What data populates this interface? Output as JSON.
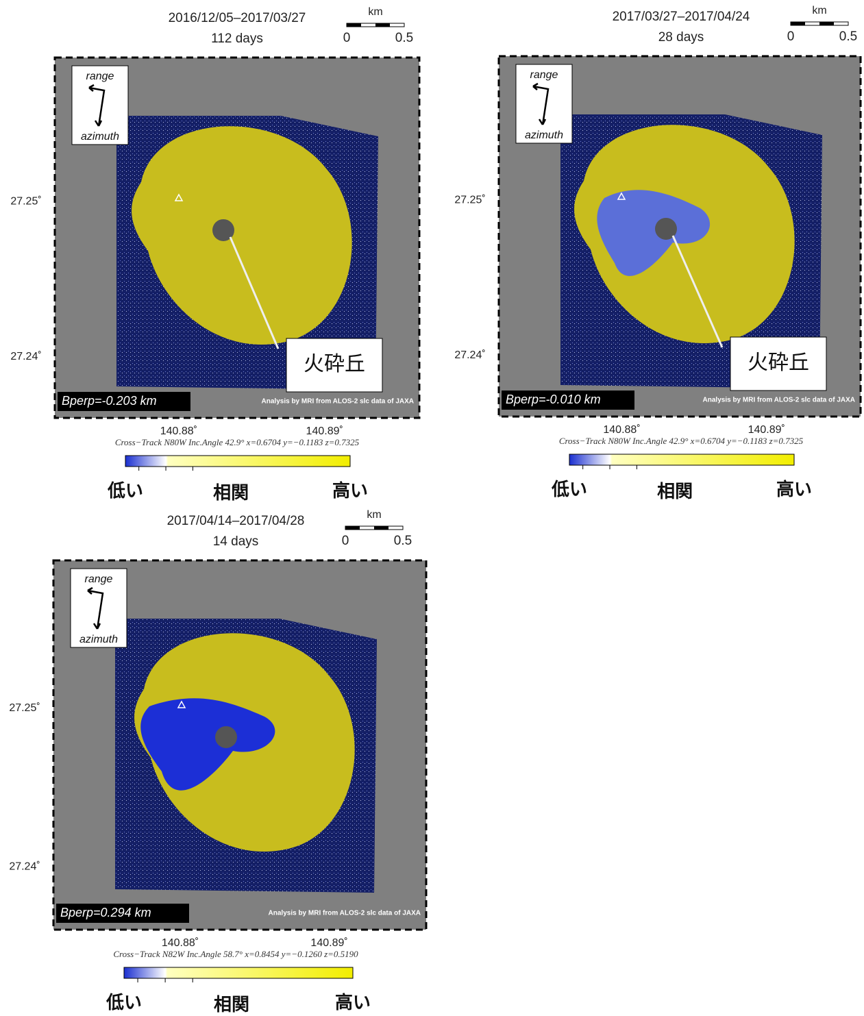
{
  "panels": [
    {
      "dates": "2016/12/05–2017/03/27",
      "days": "112 days",
      "scale": {
        "unit": "km",
        "ticks": [
          "0",
          "0.5"
        ]
      },
      "lat_labels": [
        "27.25˚",
        "27.24˚"
      ],
      "lon_labels": [
        "140.88˚",
        "140.89˚"
      ],
      "compass": {
        "range": "range",
        "azimuth": "azimuth"
      },
      "bperp": "Bperp=-0.203 km",
      "credit": "Analysis by MRI from ALOS-2 slc data of JAXA",
      "params": "Cross−Track N80W  Inc.Angle 42.9°  x=0.6704  y=−0.1183  z=0.7325",
      "colorbar": {
        "low": "低い",
        "label": "相関",
        "high": "高い"
      },
      "annotation": "火砕丘"
    },
    {
      "dates": "2017/03/27–2017/04/24",
      "days": "28 days",
      "scale": {
        "unit": "km",
        "ticks": [
          "0",
          "0.5"
        ]
      },
      "lat_labels": [
        "27.25˚",
        "27.24˚"
      ],
      "lon_labels": [
        "140.88˚",
        "140.89˚"
      ],
      "compass": {
        "range": "range",
        "azimuth": "azimuth"
      },
      "bperp": "Bperp=-0.010 km",
      "credit": "Analysis by MRI from ALOS-2 slc data of JAXA",
      "params": "Cross−Track N80W  Inc.Angle 42.9°  x=0.6704  y=−0.1183  z=0.7325",
      "colorbar": {
        "low": "低い",
        "label": "相関",
        "high": "高い"
      },
      "annotation": "火砕丘"
    },
    {
      "dates": "2017/04/14–2017/04/28",
      "days": "14 days",
      "scale": {
        "unit": "km",
        "ticks": [
          "0",
          "0.5"
        ]
      },
      "lat_labels": [
        "27.25˚",
        "27.24˚"
      ],
      "lon_labels": [
        "140.88˚",
        "140.89˚"
      ],
      "compass": {
        "range": "range",
        "azimuth": "azimuth"
      },
      "bperp": "Bperp=0.294 km",
      "credit": "Analysis by MRI from ALOS-2 slc data of JAXA",
      "params": "Cross−Track N82W  Inc.Angle 58.7°  x=0.8454  y=−0.1260  z=0.5190",
      "colorbar": {
        "low": "低い",
        "label": "相関",
        "high": "高い"
      }
    }
  ]
}
